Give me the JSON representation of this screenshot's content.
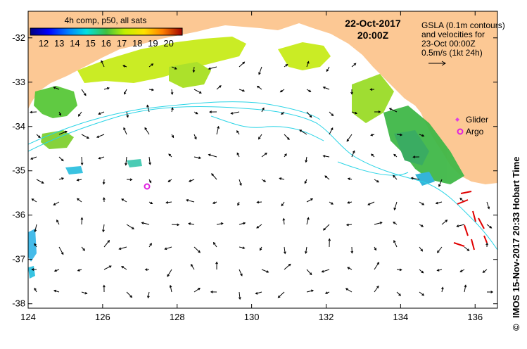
{
  "map": {
    "lon_ticks": [
      "124",
      "126",
      "128",
      "130",
      "132",
      "134",
      "136"
    ],
    "lat_ticks": [
      "-32",
      "-33",
      "-34",
      "-35",
      "-36",
      "-37",
      "-38"
    ],
    "lon_range": [
      124,
      136.6
    ],
    "lat_range": [
      -38.1,
      -31.4
    ]
  },
  "colorbar": {
    "title": "4h comp, p50, all sats",
    "labels": [
      "12",
      "13",
      "14",
      "15",
      "16",
      "17",
      "18",
      "19",
      "20"
    ]
  },
  "header": {
    "date": "22-Oct-2017",
    "time": "20:00Z"
  },
  "info": {
    "line1": "GSLA (0.1m contours)",
    "line2": "and velocities for",
    "line3": "23-Oct 00:00Z",
    "line4": "0.5m/s (1kt 24h)"
  },
  "legend": {
    "glider": "Glider",
    "argo": "Argo"
  },
  "credit": {
    "text": "IMOS 15-Nov-2017 20:33 Hobart Time",
    "symbol": "©"
  },
  "colors": {
    "land": "#fcc894",
    "ocean_nodata": "#ffffff",
    "contour": "#2ad4e6",
    "glider": "#e040e0",
    "argo": "#e020e0",
    "red_markers": "#e00000"
  }
}
